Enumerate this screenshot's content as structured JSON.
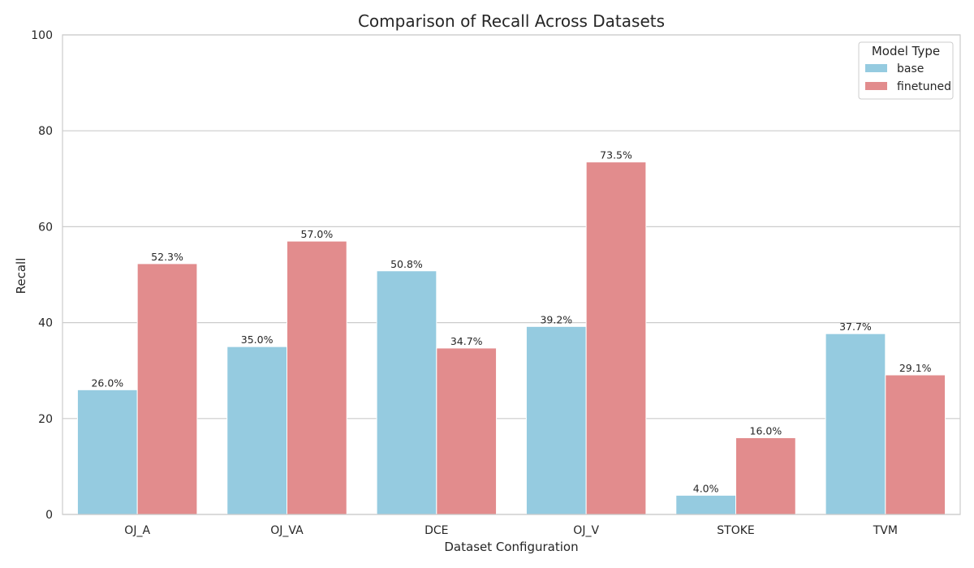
{
  "chart_data": {
    "type": "bar",
    "title": "Comparison of Recall Across Datasets",
    "xlabel": "Dataset Configuration",
    "ylabel": "Recall",
    "ylim": [
      0,
      100
    ],
    "yticks": [
      0,
      20,
      40,
      60,
      80,
      100
    ],
    "grid": true,
    "categories": [
      "OJ_A",
      "OJ_VA",
      "DCE",
      "OJ_V",
      "STOKE",
      "TVM"
    ],
    "series": [
      {
        "name": "base",
        "color": "#95CBE0",
        "values": [
          26.0,
          35.0,
          50.8,
          39.2,
          4.0,
          37.7
        ],
        "labels": [
          "26.0%",
          "35.0%",
          "50.8%",
          "39.2%",
          "4.0%",
          "37.7%"
        ]
      },
      {
        "name": "finetuned",
        "color": "#E28C8D",
        "values": [
          52.3,
          57.0,
          34.7,
          73.5,
          16.0,
          29.1
        ],
        "labels": [
          "52.3%",
          "57.0%",
          "34.7%",
          "73.5%",
          "16.0%",
          "29.1%"
        ]
      }
    ],
    "legend": {
      "title": "Model Type",
      "position": "top-right"
    }
  }
}
